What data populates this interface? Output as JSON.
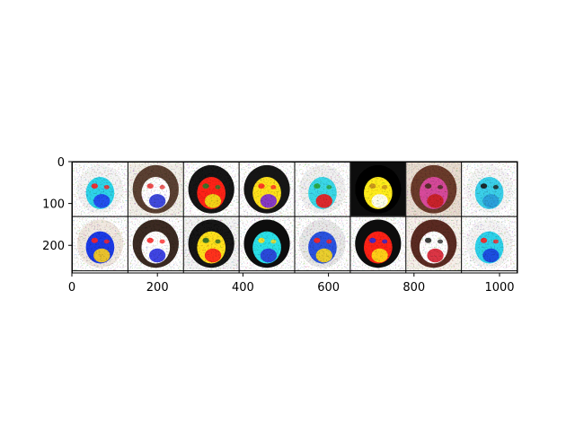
{
  "chart_data": {
    "type": "image-grid",
    "title": "",
    "xlabel": "",
    "ylabel": "",
    "xlim": [
      0,
      1042
    ],
    "ylim": [
      266,
      0
    ],
    "x_ticks": [
      0,
      200,
      400,
      600,
      800,
      1000
    ],
    "y_ticks": [
      0,
      100,
      200
    ],
    "x_tick_labels": [
      "0",
      "200",
      "400",
      "600",
      "800",
      "1000"
    ],
    "y_tick_labels": [
      "0",
      "100",
      "200"
    ],
    "grid": {
      "rows": 2,
      "cols": 8,
      "tile_size": 128,
      "padding": 2,
      "separator_color": "#000000"
    },
    "tiles": [
      {
        "bg": "#ffffff",
        "hair": "#f4f4f4",
        "face": "#2ed4ea",
        "accent": "#2040f0",
        "speck": "#ff2020"
      },
      {
        "bg": "#f2efe8",
        "hair": "#5a4030",
        "face": "#ffffff",
        "accent": "#2a36d8",
        "speck": "#e83a3a"
      },
      {
        "bg": "#ffffff",
        "hair": "#141414",
        "face": "#ff2418",
        "accent": "#f2e418",
        "speck": "#2a7a2a"
      },
      {
        "bg": "#ffffff",
        "hair": "#181818",
        "face": "#ffe21a",
        "accent": "#7a28d8",
        "speck": "#ff2a2a"
      },
      {
        "bg": "#ffffff",
        "hair": "#f0f0f0",
        "face": "#3ad8e8",
        "accent": "#f01a1a",
        "speck": "#2aa43a"
      },
      {
        "bg": "#101010",
        "hair": "#000000",
        "face": "#ffec1a",
        "accent": "#ffffff",
        "speck": "#c89020"
      },
      {
        "bg": "#e8dcd0",
        "hair": "#6a3a2c",
        "face": "#d64a9a",
        "accent": "#c82020",
        "speck": "#4a2a20"
      },
      {
        "bg": "#ffffff",
        "hair": "#f6f6f6",
        "face": "#3ad0ea",
        "accent": "#2a9ad8",
        "speck": "#1a1a1a"
      },
      {
        "bg": "#ffffff",
        "hair": "#f0e8e0",
        "face": "#1e3ae6",
        "accent": "#ffd21a",
        "speck": "#ff2020"
      },
      {
        "bg": "#ffffff",
        "hair": "#3a2a20",
        "face": "#ffffff",
        "accent": "#2a30e0",
        "speck": "#ff2a2a"
      },
      {
        "bg": "#f4f4f4",
        "hair": "#121212",
        "face": "#ffe01a",
        "accent": "#ff2020",
        "speck": "#2a6a2a"
      },
      {
        "bg": "#ffffff",
        "hair": "#101010",
        "face": "#2ae0e8",
        "accent": "#2a3ad8",
        "speck": "#ffe01a"
      },
      {
        "bg": "#ffffff",
        "hair": "#e8e8e8",
        "face": "#2a52e0",
        "accent": "#ffdc1a",
        "speck": "#ff2020"
      },
      {
        "bg": "#ffffff",
        "hair": "#111111",
        "face": "#ff2418",
        "accent": "#ffe01a",
        "speck": "#2a2ad8"
      },
      {
        "bg": "#f6f0ea",
        "hair": "#5a2c20",
        "face": "#ffffff",
        "accent": "#d82030",
        "speck": "#2a2a2a"
      },
      {
        "bg": "#ffffff",
        "hair": "#f4f4f4",
        "face": "#2ed2ea",
        "accent": "#1a40e0",
        "speck": "#ff2020"
      }
    ]
  }
}
